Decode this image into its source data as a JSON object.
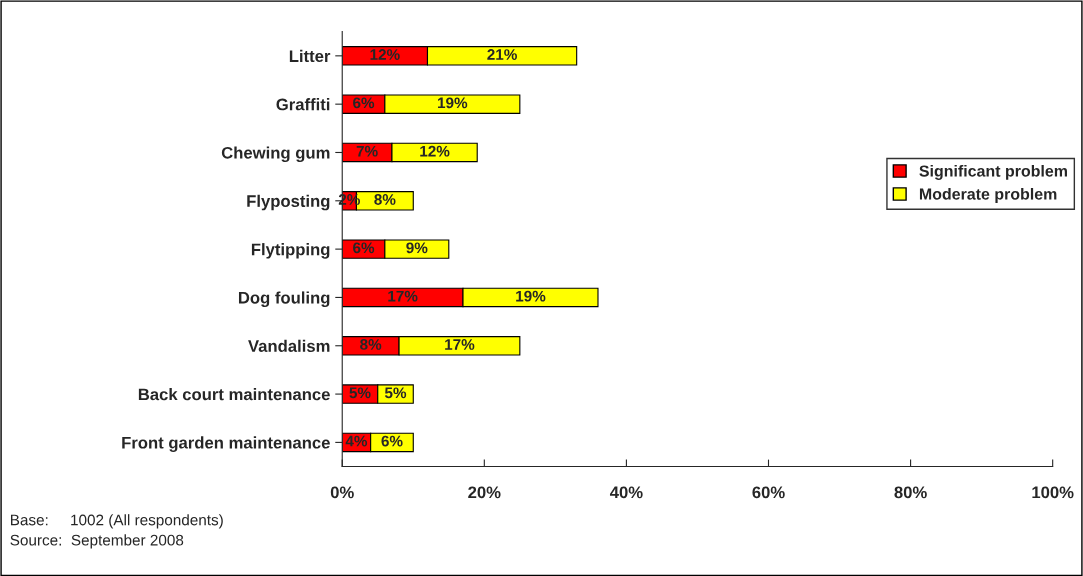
{
  "chart_data": {
    "type": "bar",
    "orientation": "horizontal",
    "stacked": true,
    "categories": [
      "Litter",
      "Graffiti",
      "Chewing gum",
      "Flyposting",
      "Flytipping",
      "Dog fouling",
      "Vandalism",
      "Back court maintenance",
      "Front garden maintenance"
    ],
    "series": [
      {
        "name": "Significant problem",
        "color": "#ff0000",
        "values": [
          12,
          6,
          7,
          2,
          6,
          17,
          8,
          5,
          4
        ],
        "value_labels": [
          "12%",
          "6%",
          "7%",
          "2%",
          "6%",
          "17%",
          "8%",
          "5%",
          "4%"
        ]
      },
      {
        "name": "Moderate problem",
        "color": "#ffff00",
        "values": [
          21,
          19,
          12,
          8,
          9,
          19,
          17,
          5,
          6
        ],
        "value_labels": [
          "21%",
          "19%",
          "12%",
          "8%",
          "9%",
          "19%",
          "17%",
          "5%",
          "6%"
        ]
      }
    ],
    "xlim": [
      0,
      100
    ],
    "xticks": [
      {
        "value": 0,
        "label": "0%"
      },
      {
        "value": 20,
        "label": "20%"
      },
      {
        "value": 40,
        "label": "40%"
      },
      {
        "value": 60,
        "label": "60%"
      },
      {
        "value": 80,
        "label": "80%"
      },
      {
        "value": 100,
        "label": "100%"
      }
    ],
    "legend": "right",
    "grid": false,
    "annotations": [
      "Base:     1002 (All respondents)",
      "Source:  September 2008"
    ]
  }
}
